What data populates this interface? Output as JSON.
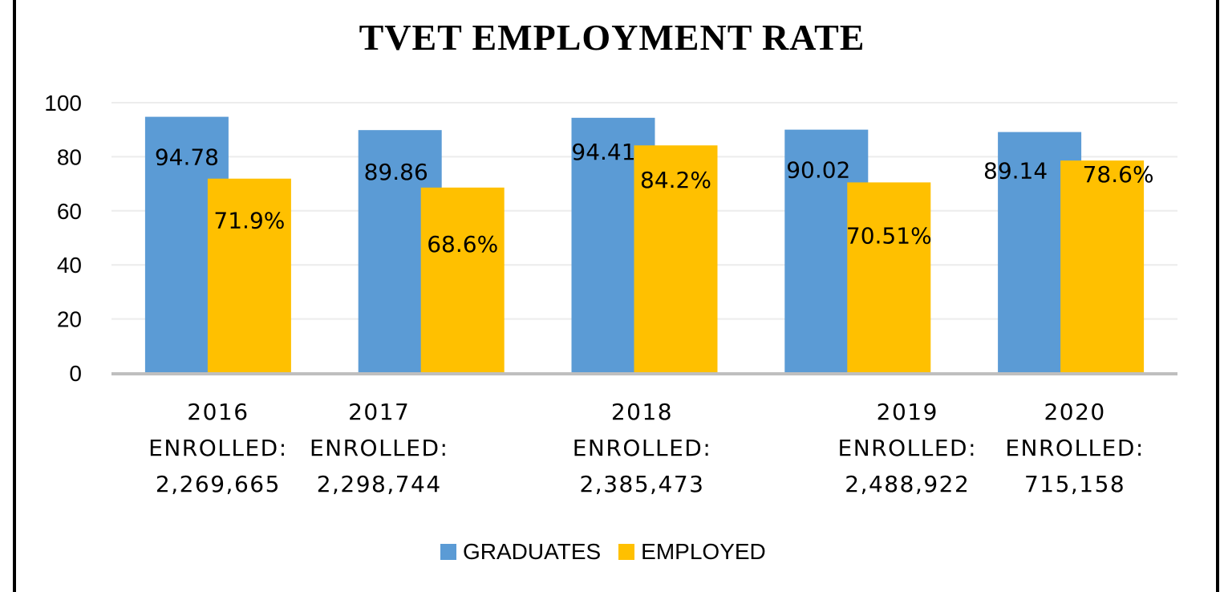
{
  "chart_data": {
    "type": "bar",
    "title": "TVET EMPLOYMENT RATE",
    "categories": [
      [
        "2016",
        "ENROLLED:",
        "2,269,665"
      ],
      [
        "2017",
        "ENROLLED:",
        "2,298,744"
      ],
      [
        "2018",
        "ENROLLED:",
        "2,385,473"
      ],
      [
        "2019",
        "ENROLLED:",
        "2,488,922"
      ],
      [
        "2020",
        "ENROLLED:",
        "715,158"
      ]
    ],
    "series": [
      {
        "name": "GRADUATES",
        "color": "#5B9BD5",
        "values": [
          94.78,
          89.86,
          94.41,
          90.02,
          89.14
        ],
        "labels": [
          "94.78",
          "89.86",
          "94.41",
          "90.02",
          "89.14"
        ]
      },
      {
        "name": "EMPLOYED",
        "color": "#FFC000",
        "values": [
          71.9,
          68.6,
          84.2,
          70.51,
          78.6
        ],
        "labels": [
          "71.9%",
          "68.6%",
          "84.2%",
          "70.51%",
          "78.6%"
        ]
      }
    ],
    "yticks": [
      "0",
      "20",
      "40",
      "60",
      "80",
      "100"
    ],
    "ylim": [
      0,
      100
    ],
    "grid": true,
    "legend": "bottom",
    "xlabel": "",
    "ylabel": ""
  }
}
